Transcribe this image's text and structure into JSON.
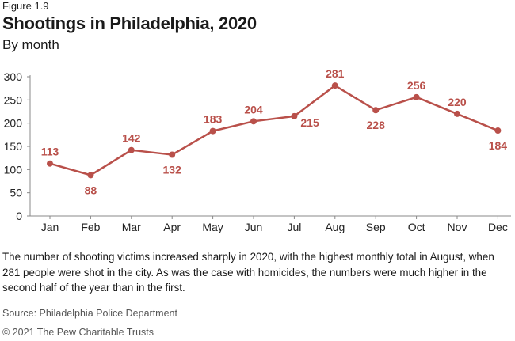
{
  "figure_label": "Figure 1.9",
  "chart_data": {
    "type": "line",
    "title": "Shootings in Philadelphia, 2020",
    "subtitle": "By month",
    "xlabel": "",
    "ylabel": "",
    "categories": [
      "Jan",
      "Feb",
      "Mar",
      "Apr",
      "May",
      "Jun",
      "Jul",
      "Aug",
      "Sep",
      "Oct",
      "Nov",
      "Dec"
    ],
    "series": [
      {
        "values": [
          113,
          88,
          142,
          132,
          183,
          204,
          215,
          281,
          228,
          256,
          220,
          184
        ]
      }
    ],
    "ylim": [
      0,
      300
    ],
    "yticks": [
      0,
      50,
      100,
      150,
      200,
      250,
      300
    ],
    "grid": false,
    "data_labels": true,
    "line_color": "#b9504a",
    "label_color": "#b9504a"
  },
  "description": "The number of shooting victims increased sharply in 2020, with the highest monthly total in August, when 281 people were shot in the city. As was the case with homicides, the numbers were much higher in the second half of the year than in the first.",
  "source": "Source: Philadelphia Police Department",
  "copyright": "© 2021 The Pew Charitable Trusts"
}
